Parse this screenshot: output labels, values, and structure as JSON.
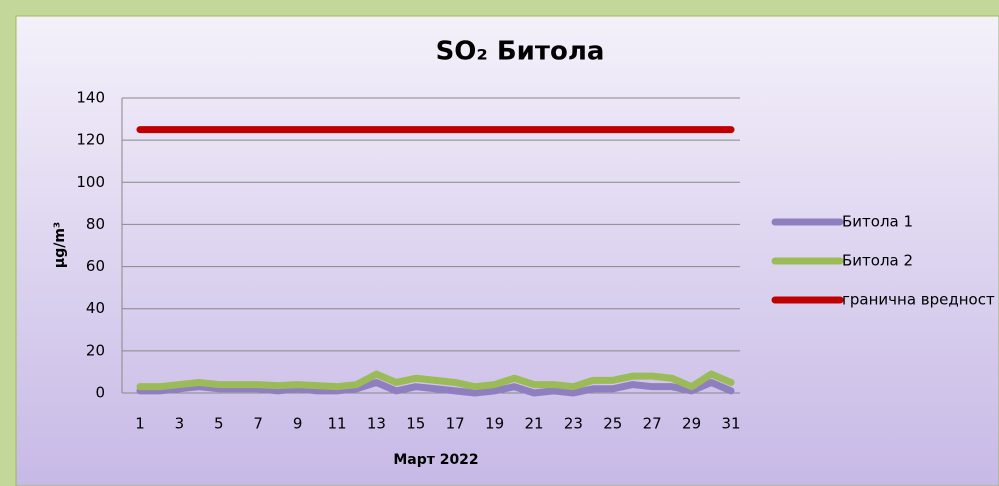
{
  "chart_data": {
    "type": "line",
    "title": "SO₂ Битола",
    "xlabel": "Март 2022",
    "ylabel": "µg/m³",
    "x": [
      1,
      2,
      3,
      4,
      5,
      6,
      7,
      8,
      9,
      10,
      11,
      12,
      13,
      14,
      15,
      16,
      17,
      18,
      19,
      20,
      21,
      22,
      23,
      24,
      25,
      26,
      27,
      28,
      29,
      30,
      31
    ],
    "xlim": [
      1,
      31
    ],
    "xticks": [
      1,
      3,
      5,
      7,
      9,
      11,
      13,
      15,
      17,
      19,
      21,
      23,
      25,
      27,
      29,
      31
    ],
    "ylim": [
      0,
      140
    ],
    "yticks": [
      0,
      20,
      40,
      60,
      80,
      100,
      120,
      140
    ],
    "grid": true,
    "legend": "right",
    "series": [
      {
        "name": "Битола 1",
        "color": "#8f7fc0",
        "values": [
          1,
          1,
          2,
          3,
          2,
          2,
          2,
          1,
          2,
          1,
          1,
          2,
          5,
          1,
          3,
          2,
          1,
          0,
          1,
          3,
          0,
          1,
          0,
          2,
          2,
          4,
          3,
          3,
          1,
          5,
          1
        ]
      },
      {
        "name": "Битола 2",
        "color": "#9bbb59",
        "values": [
          3,
          3,
          4,
          5,
          4,
          4,
          4,
          3.5,
          4,
          3.5,
          3,
          4,
          9,
          5,
          7,
          6,
          5,
          3,
          4,
          7,
          4,
          4,
          3,
          6,
          6,
          8,
          8,
          7,
          3,
          9,
          5
        ]
      },
      {
        "name": "гранична вредност",
        "color": "#c00000",
        "values": [
          125,
          125,
          125,
          125,
          125,
          125,
          125,
          125,
          125,
          125,
          125,
          125,
          125,
          125,
          125,
          125,
          125,
          125,
          125,
          125,
          125,
          125,
          125,
          125,
          125,
          125,
          125,
          125,
          125,
          125,
          125
        ]
      }
    ]
  }
}
